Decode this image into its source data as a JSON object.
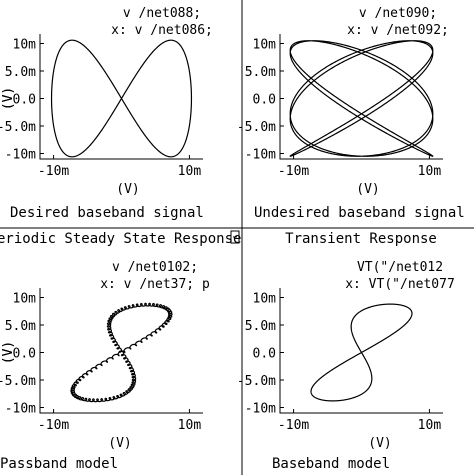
{
  "chart_data": [
    {
      "type": "line",
      "title_lines": [
        "v /net088;",
        "x: v /net086;"
      ],
      "ylabel": "(V)",
      "xlabel": "(V)",
      "caption": "Desired baseband signal",
      "xlim": [
        -0.012,
        0.012
      ],
      "ylim": [
        -0.011,
        0.011
      ],
      "xticks": [
        "-10m",
        "10m"
      ],
      "yticks": [
        "10m",
        "5.0m",
        "0.0",
        "-5.0m",
        "-10m"
      ],
      "curve": {
        "kind": "lissajous",
        "a": 1,
        "b": 2,
        "ax": 0.0103,
        "ay": 0.0106,
        "phase": 0,
        "samples": 600,
        "wiggle": 0
      }
    },
    {
      "type": "line",
      "title_lines": [
        "v /net090;",
        "x: v /net092;"
      ],
      "ylabel": "(V)",
      "xlabel": "(V)",
      "caption": "Undesired baseband signal",
      "xlim": [
        -0.012,
        0.012
      ],
      "ylim": [
        -0.011,
        0.011
      ],
      "xticks": [
        "-10m",
        "10m"
      ],
      "yticks": [
        "10m",
        "5.0m",
        "0.0",
        "-5.0m",
        "-10m"
      ],
      "curve": {
        "kind": "lissajous",
        "a": 5,
        "b": 4,
        "ax": 0.0105,
        "ay": 0.0105,
        "phase": 0.45,
        "samples": 2400,
        "wiggle": 0
      }
    },
    {
      "type": "line",
      "header": "Periodic Steady State Response",
      "title_lines": [
        "v /net0102;",
        "x: v /net37; p"
      ],
      "ylabel": "(V)",
      "xlabel": "(V)",
      "caption": "Passband model",
      "xlim": [
        -0.012,
        0.012
      ],
      "ylim": [
        -0.011,
        0.011
      ],
      "xticks": [
        "-10m",
        "10m"
      ],
      "yticks": [
        "10m",
        "5.0m",
        "0.0",
        "-5.0m",
        "-10m"
      ],
      "curve": {
        "kind": "skewfig8",
        "ax": 0.0043,
        "ay": 0.0087,
        "tilt": 1.05,
        "samples": 900,
        "wiggle": 0.00025
      }
    },
    {
      "type": "line",
      "header": "Transient Response",
      "title_lines": [
        "VT(\"/net012",
        "x: VT(\"/net077"
      ],
      "ylabel": "(V)",
      "xlabel": "(V)",
      "caption": "Baseband model",
      "xlim": [
        -0.012,
        0.012
      ],
      "ylim": [
        -0.011,
        0.011
      ],
      "xticks": [
        "-10m",
        "10m"
      ],
      "yticks": [
        "10m",
        "5.0m",
        "0.0",
        "-5.0m",
        "-10m"
      ],
      "curve": {
        "kind": "skewfig8",
        "ax": 0.0042,
        "ay": 0.0088,
        "tilt": 1.15,
        "samples": 900,
        "wiggle": 0
      }
    }
  ]
}
